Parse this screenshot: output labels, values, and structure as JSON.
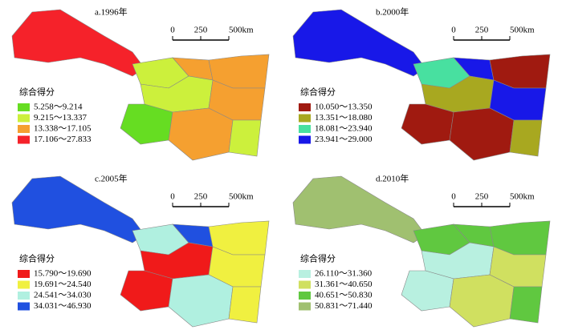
{
  "panels": [
    {
      "title": "a.1996年",
      "scale": [
        "0",
        "250",
        "500km"
      ],
      "legend": {
        "title": "综合得分",
        "items": [
          {
            "label": "5.258～9.214",
            "color": "#66dd22"
          },
          {
            "label": "9.215～13.337",
            "color": "#ccf03c"
          },
          {
            "label": "13.338～17.105",
            "color": "#f5a030"
          },
          {
            "label": "17.106～27.833",
            "color": "#f5222a"
          }
        ]
      }
    },
    {
      "title": "b.2000年",
      "scale": [
        "0",
        "250",
        "500km"
      ],
      "legend": {
        "title": "综合得分",
        "items": [
          {
            "label": "10.050～13.350",
            "color": "#a01a10"
          },
          {
            "label": "13.351～18.080",
            "color": "#a8a820"
          },
          {
            "label": "18.081～23.940",
            "color": "#48e0a0"
          },
          {
            "label": "23.941～29.000",
            "color": "#1818e8"
          }
        ]
      }
    },
    {
      "title": "c.2005年",
      "scale": [
        "0",
        "250",
        "500km"
      ],
      "legend": {
        "title": "综合得分",
        "items": [
          {
            "label": "15.790～19.690",
            "color": "#f01a1a"
          },
          {
            "label": "19.691～24.540",
            "color": "#f0f040"
          },
          {
            "label": "24.541～34.030",
            "color": "#b0f0e0"
          },
          {
            "label": "34.031～46.930",
            "color": "#2050e0"
          }
        ]
      }
    },
    {
      "title": "d.2010年",
      "scale": [
        "0",
        "250",
        "500km"
      ],
      "legend": {
        "title": "综合得分",
        "items": [
          {
            "label": "26.110～31.360",
            "color": "#b8f0e0"
          },
          {
            "label": "31.361～40.650",
            "color": "#d0e060"
          },
          {
            "label": "40.651～50.830",
            "color": "#60c840"
          },
          {
            "label": "50.831～71.440",
            "color": "#a0c070"
          }
        ]
      }
    }
  ]
}
